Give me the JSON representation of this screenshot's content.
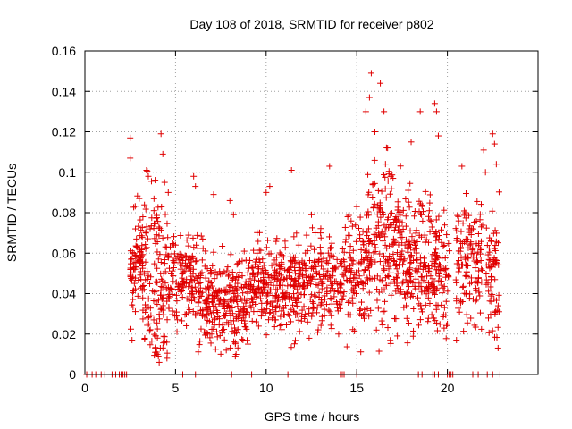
{
  "chart_data": {
    "type": "scatter",
    "title": "Day 108 of 2018, SRMTID for receiver p802",
    "xlabel": "GPS time / hours",
    "ylabel": "SRMTID / TECUs",
    "xlim": [
      0,
      25
    ],
    "ylim": [
      0,
      0.16
    ],
    "x_ticks": [
      0,
      5,
      10,
      15,
      20
    ],
    "y_ticks": [
      0,
      0.02,
      0.04,
      0.06,
      0.08,
      0.1,
      0.12,
      0.14,
      0.16
    ],
    "x_tick_labels": [
      "0",
      "5",
      "10",
      "15",
      "20"
    ],
    "y_tick_labels": [
      "0",
      "0.02",
      "0.04",
      "0.06",
      "0.08",
      "0.1",
      "0.12",
      "0.14",
      "0.16"
    ],
    "grid": true,
    "marker": "+",
    "marker_color": "#e00000",
    "series": [
      {
        "name": "SRMTID",
        "points": [
          [
            2.5,
            0.117
          ],
          [
            2.5,
            0.107
          ],
          [
            2.6,
            0.017
          ],
          [
            3.0,
            0.087
          ],
          [
            3.2,
            0.078
          ],
          [
            3.4,
            0.101
          ],
          [
            3.5,
            0.098
          ],
          [
            3.6,
            0.072
          ],
          [
            3.8,
            0.027
          ],
          [
            3.9,
            0.019
          ],
          [
            4.0,
            0.018
          ],
          [
            4.0,
            0.01
          ],
          [
            4.1,
            0.006
          ],
          [
            4.2,
            0.119
          ],
          [
            4.3,
            0.109
          ],
          [
            4.4,
            0.095
          ],
          [
            4.6,
            0.09
          ],
          [
            5.0,
            0.064
          ],
          [
            5.3,
            0.057
          ],
          [
            5.5,
            0.045
          ],
          [
            6.0,
            0.098
          ],
          [
            6.1,
            0.093
          ],
          [
            6.5,
            0.067
          ],
          [
            6.7,
            0.025
          ],
          [
            7.0,
            0.02
          ],
          [
            7.1,
            0.089
          ],
          [
            7.5,
            0.01
          ],
          [
            7.8,
            0.012
          ],
          [
            8.0,
            0.086
          ],
          [
            8.2,
            0.079
          ],
          [
            8.3,
            0.009
          ],
          [
            8.5,
            0.03
          ],
          [
            9.0,
            0.015
          ],
          [
            9.5,
            0.06
          ],
          [
            10.0,
            0.09
          ],
          [
            10.2,
            0.093
          ],
          [
            10.6,
            0.046
          ],
          [
            11.0,
            0.038
          ],
          [
            11.4,
            0.101
          ],
          [
            11.8,
            0.064
          ],
          [
            12.5,
            0.079
          ],
          [
            13.0,
            0.07
          ],
          [
            13.5,
            0.103
          ],
          [
            14.0,
            0.02
          ],
          [
            14.5,
            0.078
          ],
          [
            15.0,
            0.083
          ],
          [
            15.5,
            0.13
          ],
          [
            15.7,
            0.137
          ],
          [
            15.8,
            0.149
          ],
          [
            16.0,
            0.12
          ],
          [
            16.3,
            0.144
          ],
          [
            16.5,
            0.13
          ],
          [
            16.7,
            0.112
          ],
          [
            17.0,
            0.097
          ],
          [
            17.5,
            0.061
          ],
          [
            18.0,
            0.115
          ],
          [
            18.5,
            0.13
          ],
          [
            19.0,
            0.081
          ],
          [
            19.3,
            0.134
          ],
          [
            19.4,
            0.13
          ],
          [
            19.5,
            0.118
          ],
          [
            19.6,
            0.054
          ],
          [
            20.0,
            0.025
          ],
          [
            20.5,
            0.017
          ],
          [
            20.8,
            0.103
          ],
          [
            21.0,
            0.08
          ],
          [
            21.5,
            0.06
          ],
          [
            22.0,
            0.111
          ],
          [
            22.1,
            0.1
          ],
          [
            22.5,
            0.119
          ],
          [
            22.6,
            0.114
          ],
          [
            22.7,
            0.104
          ],
          [
            22.8,
            0.034
          ]
        ]
      }
    ]
  }
}
